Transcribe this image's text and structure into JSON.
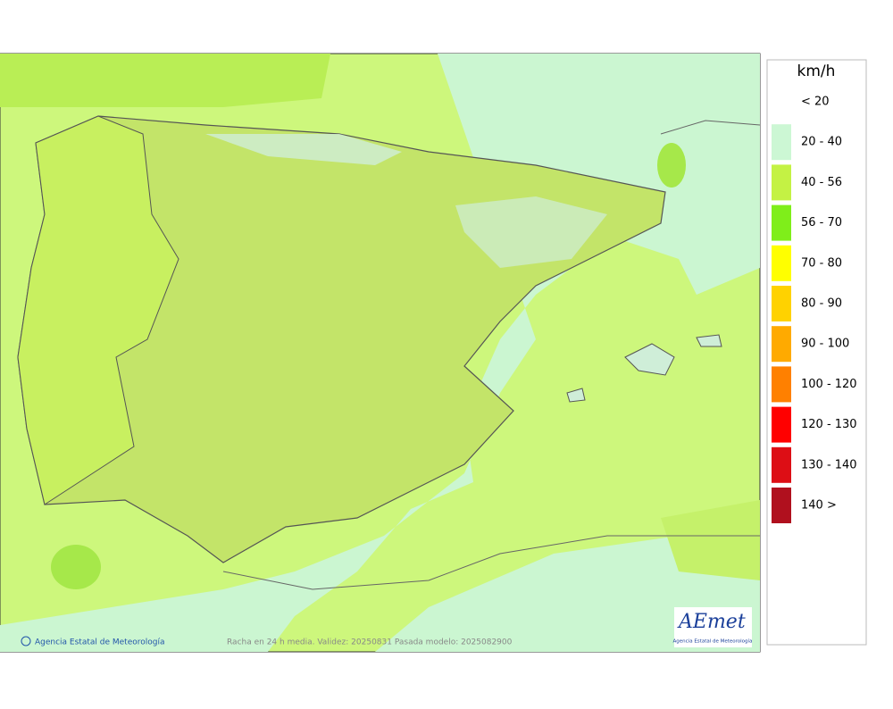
{
  "legend": {
    "title": "km/h",
    "items": [
      {
        "label": "< 20"
      },
      {
        "label": "20 - 40",
        "color": "#ccf7d4"
      },
      {
        "label": "40 - 56",
        "color": "#c4f244"
      },
      {
        "label": "56 - 70",
        "color": "#7fee1a"
      },
      {
        "label": "70 - 80",
        "color": "#ffff00"
      },
      {
        "label": "80 - 90",
        "color": "#ffd200"
      },
      {
        "label": "90 - 100",
        "color": "#ffaa00"
      },
      {
        "label": "100 - 120",
        "color": "#ff8000"
      },
      {
        "label": "120 - 130",
        "color": "#ff0000"
      },
      {
        "label": "130 - 140",
        "color": "#dd0e15"
      },
      {
        "label": "140 >",
        "color": "#b0101e"
      }
    ]
  },
  "credit": "Agencia Estatal de Meteorología",
  "caption": "Racha en 24 h media. Validez: 20250831 Pasada modelo: 2025082900",
  "logo": {
    "name": "AEmet",
    "subtitle": "Agencia Estatal de Meteorología"
  }
}
